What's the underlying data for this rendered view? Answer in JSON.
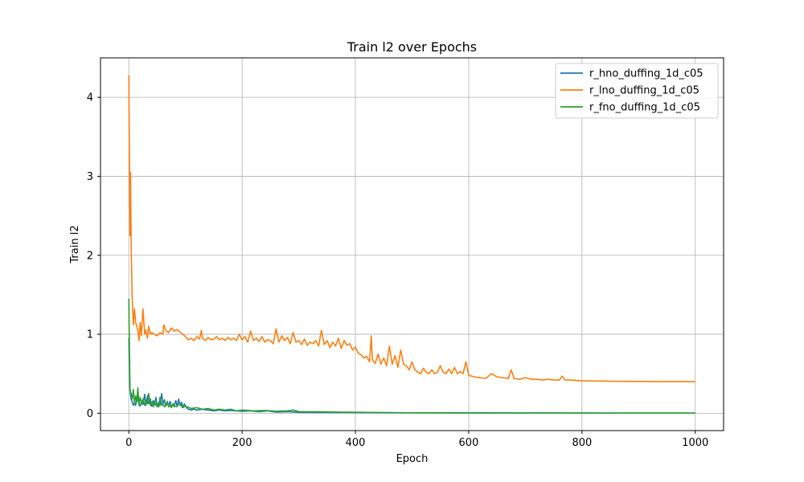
{
  "chart_data": {
    "type": "line",
    "title": "Train l2 over Epochs",
    "xlabel": "Epoch",
    "ylabel": "Train l2",
    "xlim": [
      -50,
      1050
    ],
    "ylim": [
      -0.22,
      4.5
    ],
    "xticks": [
      0,
      200,
      400,
      600,
      800,
      1000
    ],
    "yticks": [
      0,
      1,
      2,
      3,
      4
    ],
    "grid": true,
    "legend_position": "top-right",
    "series": [
      {
        "name": "r_hno_duffing_1d_c05",
        "color": "#1f77b4",
        "x": [
          0,
          2,
          4,
          6,
          8,
          10,
          12,
          15,
          18,
          20,
          23,
          25,
          28,
          30,
          33,
          35,
          38,
          40,
          43,
          45,
          48,
          50,
          53,
          55,
          58,
          60,
          63,
          65,
          68,
          70,
          73,
          75,
          78,
          80,
          83,
          85,
          88,
          90,
          93,
          95,
          98,
          100,
          105,
          110,
          115,
          120,
          130,
          140,
          150,
          160,
          170,
          180,
          190,
          200,
          215,
          230,
          245,
          260,
          280,
          300,
          330,
          360,
          400,
          450,
          500,
          600,
          700,
          800,
          900,
          1000
        ],
        "y": [
          0.95,
          0.3,
          0.18,
          0.14,
          0.1,
          0.13,
          0.1,
          0.2,
          0.12,
          0.09,
          0.15,
          0.11,
          0.24,
          0.1,
          0.22,
          0.12,
          0.18,
          0.09,
          0.16,
          0.1,
          0.2,
          0.08,
          0.14,
          0.1,
          0.25,
          0.12,
          0.17,
          0.09,
          0.13,
          0.1,
          0.15,
          0.08,
          0.12,
          0.1,
          0.16,
          0.08,
          0.18,
          0.1,
          0.14,
          0.07,
          0.12,
          0.09,
          0.05,
          0.04,
          0.05,
          0.04,
          0.05,
          0.04,
          0.03,
          0.04,
          0.03,
          0.035,
          0.03,
          0.025,
          0.03,
          0.02,
          0.03,
          0.015,
          0.02,
          0.012,
          0.01,
          0.01,
          0.008,
          0.006,
          0.005,
          0.003,
          0.003,
          0.002,
          0.002,
          0.002
        ]
      },
      {
        "name": "r_lno_duffing_1d_c05",
        "color": "#ff7f0e",
        "x": [
          0,
          1,
          2,
          3,
          4,
          5,
          6,
          7,
          8,
          10,
          12,
          14,
          16,
          18,
          20,
          22,
          25,
          28,
          30,
          33,
          35,
          38,
          40,
          45,
          50,
          55,
          60,
          62,
          65,
          70,
          75,
          80,
          85,
          90,
          95,
          100,
          105,
          110,
          115,
          120,
          125,
          128,
          130,
          135,
          140,
          145,
          150,
          155,
          160,
          165,
          170,
          175,
          180,
          185,
          190,
          195,
          200,
          205,
          210,
          215,
          220,
          225,
          230,
          235,
          240,
          245,
          250,
          255,
          260,
          265,
          270,
          275,
          280,
          285,
          290,
          295,
          300,
          305,
          310,
          315,
          320,
          325,
          330,
          335,
          340,
          345,
          350,
          355,
          360,
          365,
          370,
          375,
          380,
          385,
          390,
          395,
          400,
          405,
          410,
          415,
          420,
          425,
          428,
          430,
          435,
          440,
          445,
          450,
          455,
          460,
          465,
          470,
          475,
          480,
          485,
          490,
          495,
          500,
          505,
          510,
          515,
          520,
          525,
          530,
          535,
          540,
          545,
          550,
          555,
          560,
          565,
          570,
          575,
          580,
          585,
          590,
          595,
          600,
          610,
          620,
          630,
          640,
          650,
          660,
          670,
          675,
          680,
          690,
          700,
          710,
          720,
          730,
          740,
          750,
          760,
          765,
          770,
          780,
          800,
          850,
          900,
          950,
          1000
        ],
        "y": [
          4.28,
          3.3,
          2.25,
          3.05,
          2.2,
          1.8,
          1.45,
          1.3,
          1.12,
          1.32,
          1.15,
          1.1,
          1.05,
          0.92,
          1.15,
          0.98,
          1.32,
          1.0,
          1.05,
          0.95,
          1.1,
          1.0,
          1.02,
          1.0,
          0.98,
          1.02,
          1.0,
          1.12,
          1.05,
          1.02,
          1.08,
          1.04,
          1.06,
          1.03,
          1.0,
          0.97,
          0.93,
          0.95,
          0.92,
          0.97,
          0.94,
          1.05,
          0.95,
          0.92,
          0.96,
          0.93,
          0.94,
          0.97,
          0.93,
          0.95,
          0.92,
          0.96,
          0.93,
          0.95,
          0.92,
          1.0,
          0.93,
          0.97,
          0.9,
          1.04,
          0.92,
          0.95,
          0.91,
          0.97,
          0.9,
          0.93,
          0.92,
          0.88,
          1.07,
          0.9,
          0.98,
          0.92,
          0.96,
          0.88,
          1.02,
          0.9,
          0.92,
          0.87,
          0.94,
          0.86,
          0.9,
          0.88,
          0.92,
          0.85,
          1.05,
          0.87,
          0.92,
          0.83,
          0.9,
          0.85,
          0.95,
          0.82,
          0.92,
          0.86,
          0.88,
          0.8,
          0.84,
          0.76,
          0.74,
          0.7,
          0.72,
          0.65,
          0.98,
          0.68,
          0.63,
          0.75,
          0.62,
          0.7,
          0.6,
          0.85,
          0.62,
          0.73,
          0.58,
          0.8,
          0.62,
          0.6,
          0.55,
          0.65,
          0.55,
          0.52,
          0.5,
          0.57,
          0.52,
          0.5,
          0.55,
          0.5,
          0.52,
          0.6,
          0.52,
          0.5,
          0.56,
          0.5,
          0.58,
          0.5,
          0.53,
          0.5,
          0.65,
          0.48,
          0.46,
          0.45,
          0.44,
          0.5,
          0.46,
          0.45,
          0.44,
          0.55,
          0.44,
          0.43,
          0.45,
          0.43,
          0.43,
          0.42,
          0.43,
          0.42,
          0.42,
          0.47,
          0.42,
          0.42,
          0.41,
          0.405,
          0.402,
          0.4,
          0.4
        ]
      },
      {
        "name": "r_fno_duffing_1d_c05",
        "color": "#2ca02c",
        "x": [
          0,
          2,
          4,
          6,
          8,
          10,
          12,
          14,
          16,
          18,
          20,
          23,
          25,
          28,
          30,
          33,
          35,
          38,
          40,
          43,
          45,
          48,
          50,
          53,
          55,
          58,
          60,
          63,
          65,
          68,
          70,
          73,
          75,
          78,
          80,
          85,
          90,
          95,
          100,
          110,
          120,
          130,
          140,
          150,
          160,
          170,
          180,
          190,
          200,
          220,
          240,
          260,
          280,
          290,
          300,
          330,
          360,
          400,
          450,
          500,
          600,
          700,
          800,
          900,
          1000
        ],
        "y": [
          1.45,
          0.3,
          0.25,
          0.18,
          0.3,
          0.12,
          0.22,
          0.15,
          0.32,
          0.1,
          0.2,
          0.12,
          0.18,
          0.1,
          0.15,
          0.12,
          0.25,
          0.1,
          0.14,
          0.08,
          0.15,
          0.1,
          0.12,
          0.08,
          0.2,
          0.1,
          0.12,
          0.08,
          0.1,
          0.15,
          0.08,
          0.1,
          0.07,
          0.12,
          0.08,
          0.1,
          0.12,
          0.07,
          0.09,
          0.06,
          0.07,
          0.05,
          0.06,
          0.04,
          0.05,
          0.04,
          0.05,
          0.03,
          0.04,
          0.03,
          0.035,
          0.025,
          0.03,
          0.04,
          0.02,
          0.018,
          0.015,
          0.012,
          0.009,
          0.006,
          0.004,
          0.003,
          0.003,
          0.002,
          0.002
        ]
      }
    ]
  }
}
